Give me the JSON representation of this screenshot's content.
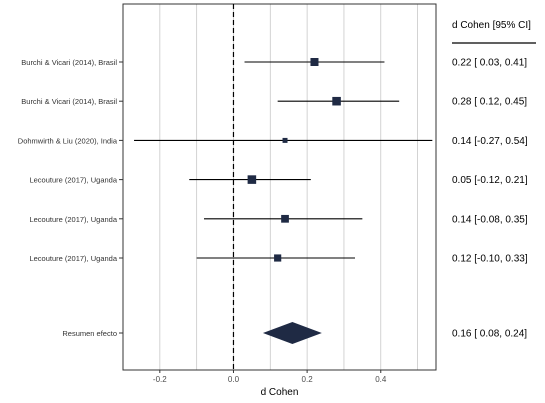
{
  "chart_data": {
    "type": "forest",
    "xlabel": "d Cohen",
    "xlim": [
      -0.3,
      0.55
    ],
    "xticks": [
      -0.2,
      0.0,
      0.2,
      0.4
    ],
    "xtick_labels": [
      "-0.2",
      "0.0",
      "0.2",
      "0.4"
    ],
    "ci_header": "d Cohen [95% CI]",
    "null_line": 0,
    "grid": true,
    "studies": [
      {
        "label": "Burchi & Vicari (2014), Brasil",
        "estimate": 0.22,
        "lower": 0.03,
        "upper": 0.41,
        "weight": 1.0,
        "ci_text": "0.22 [ 0.03, 0.41]"
      },
      {
        "label": "Burchi & Vicari (2014), Brasil",
        "estimate": 0.28,
        "lower": 0.12,
        "upper": 0.45,
        "weight": 1.1,
        "ci_text": "0.28 [ 0.12, 0.45]"
      },
      {
        "label": "Dohmwirth & Liu (2020), India",
        "estimate": 0.14,
        "lower": -0.27,
        "upper": 0.54,
        "weight": 0.45,
        "ci_text": "0.14 [-0.27, 0.54]"
      },
      {
        "label": "Lecouture (2017), Uganda",
        "estimate": 0.05,
        "lower": -0.12,
        "upper": 0.21,
        "weight": 1.1,
        "ci_text": "0.05 [-0.12, 0.21]"
      },
      {
        "label": "Lecouture (2017), Uganda",
        "estimate": 0.14,
        "lower": -0.08,
        "upper": 0.35,
        "weight": 0.95,
        "ci_text": "0.14 [-0.08, 0.35]"
      },
      {
        "label": "Lecouture (2017), Uganda",
        "estimate": 0.12,
        "lower": -0.1,
        "upper": 0.33,
        "weight": 0.85,
        "ci_text": "0.12 [-0.10, 0.33]"
      }
    ],
    "summary": {
      "label": "Resumen efecto",
      "estimate": 0.16,
      "lower": 0.08,
      "upper": 0.24,
      "ci_text": "0.16 [ 0.08, 0.24]"
    },
    "colors": {
      "marker": "#1f2a44",
      "summary": "#1f2a44",
      "grid": "#c8c8c8",
      "line": "#000000"
    }
  }
}
